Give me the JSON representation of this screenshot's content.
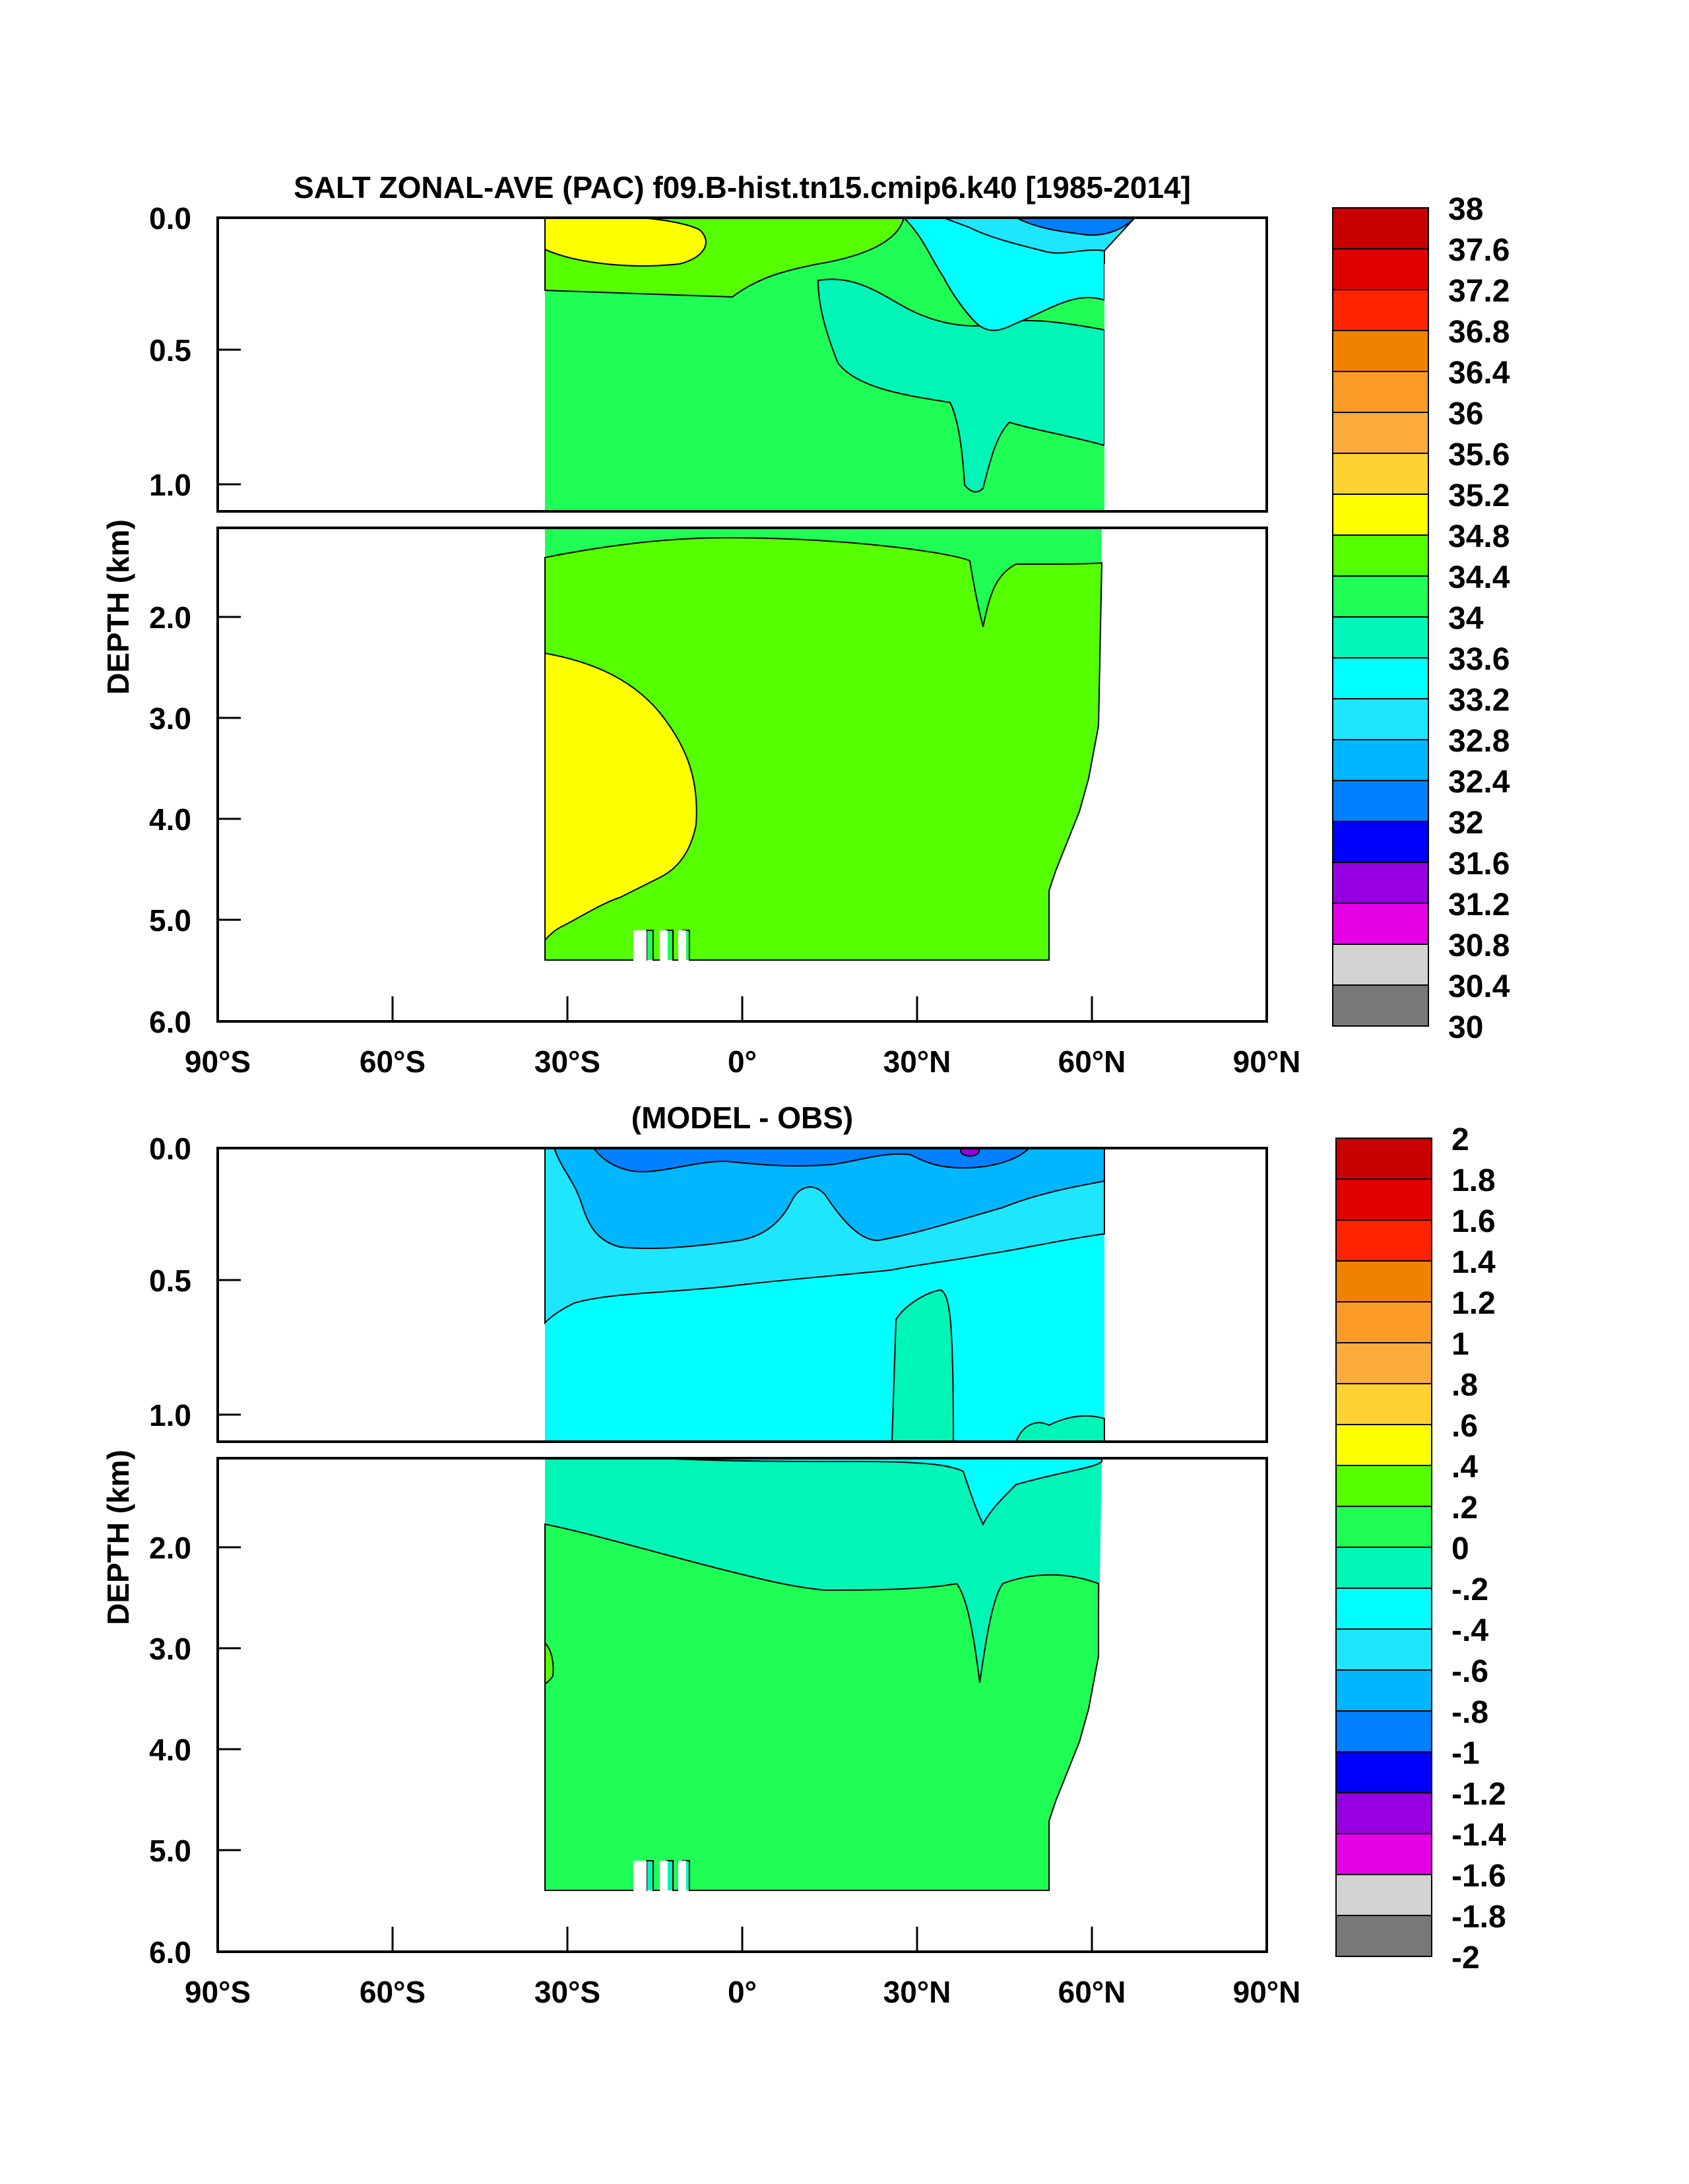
{
  "chart_data": [
    {
      "type": "heatmap",
      "title": "SALT ZONAL-AVE (PAC) f09.B-hist.tn15.cmip6.k40 [1985-2014]",
      "ylabel": "DEPTH (km)",
      "xlabel": "",
      "xlim": [
        -90,
        90
      ],
      "ylim_upper_km": [
        0.0,
        1.1
      ],
      "ylim_lower_km": [
        1.1,
        6.0
      ],
      "x_ticks": [
        "90°S",
        "60°S",
        "30°S",
        "0°",
        "30°N",
        "60°N",
        "90°N"
      ],
      "y_ticks_upper": [
        "0.0",
        "0.5",
        "1.0"
      ],
      "y_ticks_lower": [
        "2.0",
        "3.0",
        "4.0",
        "5.0",
        "6.0"
      ],
      "data_extent": {
        "lat_min": -34,
        "lat_max_surface": 62,
        "max_depth_km": 5.4
      },
      "colorbar": {
        "labels": [
          "38",
          "37.6",
          "37.2",
          "36.8",
          "36.4",
          "36",
          "35.6",
          "35.2",
          "34.8",
          "34.4",
          "34",
          "33.6",
          "33.2",
          "32.8",
          "32.4",
          "32",
          "31.6",
          "31.2",
          "30.8",
          "30.4",
          "30"
        ],
        "colors": [
          "#c80000",
          "#e10000",
          "#ff2400",
          "#f08200",
          "#fa9b28",
          "#fcac3c",
          "#ffd232",
          "#ffff00",
          "#55ff00",
          "#1efe55",
          "#00f5b7",
          "#00ffff",
          "#1ee6ff",
          "#00b7ff",
          "#0080ff",
          "#0000ff",
          "#9600e1",
          "#e600e6",
          "#d2d2d2",
          "#787878"
        ]
      },
      "features": [
        {
          "region": "deep southern Pacific (30°S–10°S, 2.4–5.3 km)",
          "value_range": "34.8–35.2"
        },
        {
          "region": "surface subtropics near 20°S",
          "value_range": "34.8–35.2"
        },
        {
          "region": "interior ocean",
          "value_range": "34.4–34.8"
        },
        {
          "region": "North Pacific intermediate water (10°N–60°N, 0.3–1.0 km)",
          "value_range": "33.6–34.0"
        },
        {
          "region": "subpolar North Pacific surface (45°N–62°N)",
          "value_range": "32.0–33.2"
        }
      ]
    },
    {
      "type": "heatmap",
      "title": "(MODEL - OBS)",
      "ylabel": "DEPTH (km)",
      "xlabel": "",
      "xlim": [
        -90,
        90
      ],
      "ylim_upper_km": [
        0.0,
        1.1
      ],
      "ylim_lower_km": [
        1.1,
        6.0
      ],
      "x_ticks": [
        "90°S",
        "60°S",
        "30°S",
        "0°",
        "30°N",
        "60°N",
        "90°N"
      ],
      "y_ticks_upper": [
        "0.0",
        "0.5",
        "1.0"
      ],
      "y_ticks_lower": [
        "2.0",
        "3.0",
        "4.0",
        "5.0",
        "6.0"
      ],
      "colorbar": {
        "labels": [
          "2",
          "1.8",
          "1.6",
          "1.4",
          "1.2",
          "1",
          ".8",
          ".6",
          ".4",
          ".2",
          "0",
          "-.2",
          "-.4",
          "-.6",
          "-.8",
          "-1",
          "-1.2",
          "-1.4",
          "-1.6",
          "-1.8",
          "-2"
        ],
        "colors": [
          "#c80000",
          "#e10000",
          "#ff2400",
          "#f08200",
          "#fa9b28",
          "#fcac3c",
          "#ffd232",
          "#ffff00",
          "#55ff00",
          "#1efe55",
          "#00f5b7",
          "#00ffff",
          "#1ee6ff",
          "#00b7ff",
          "#0080ff",
          "#0000ff",
          "#9600e1",
          "#e600e6",
          "#d2d2d2",
          "#787878"
        ]
      },
      "features": [
        {
          "region": "surface layer 0–0.3 km",
          "value_range": "-0.8 to -0.4"
        },
        {
          "region": "upper ocean 0.3–1.8 km",
          "value_range": "-0.4 to 0.0"
        },
        {
          "region": "deep ocean below ~2.2 km",
          "value_range": "0.0 to 0.2"
        }
      ]
    }
  ]
}
